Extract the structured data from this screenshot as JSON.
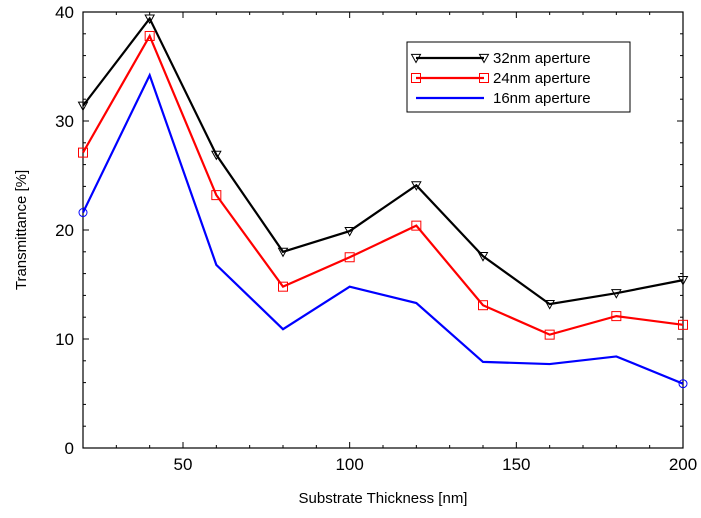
{
  "chart_data": {
    "type": "line",
    "title": "",
    "xlabel": "Substrate Thickness [nm]",
    "ylabel": "Transmittance [%]",
    "xlim": [
      20,
      200
    ],
    "ylim": [
      0,
      40
    ],
    "x_ticks": [
      50,
      100,
      150,
      200
    ],
    "x_tick_labels": [
      "50",
      "100",
      "150",
      "200"
    ],
    "y_ticks": [
      0,
      10,
      20,
      30,
      40
    ],
    "y_tick_labels": [
      "0",
      "10",
      "20",
      "30",
      "40"
    ],
    "grid": false,
    "legend_position": "top-right",
    "x": [
      20,
      40,
      60,
      80,
      100,
      120,
      140,
      160,
      180,
      200
    ],
    "series": [
      {
        "name": "32nm aperture",
        "color": "#000000",
        "marker": "triangle-down",
        "values": [
          31.4,
          39.4,
          26.9,
          18.0,
          19.9,
          24.1,
          17.6,
          13.2,
          14.2,
          15.4
        ]
      },
      {
        "name": "24nm aperture",
        "color": "#ff0000",
        "marker": "square",
        "values": [
          27.1,
          37.8,
          23.2,
          14.8,
          17.5,
          20.4,
          13.1,
          10.4,
          12.1,
          11.3
        ]
      },
      {
        "name": "16nm aperture",
        "color": "#0000ff",
        "marker": "circle",
        "values": [
          21.6,
          34.2,
          16.8,
          10.9,
          14.8,
          13.3,
          7.9,
          7.7,
          8.4,
          5.9
        ]
      }
    ]
  }
}
